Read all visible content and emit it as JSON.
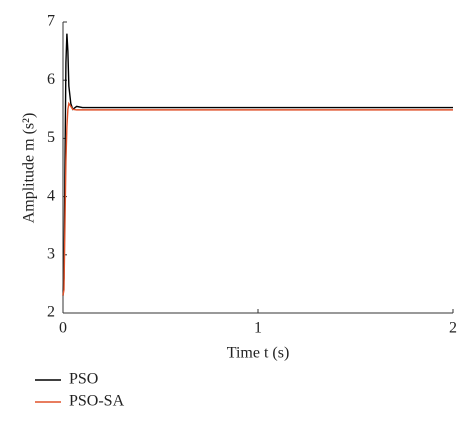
{
  "chart_data": {
    "type": "line",
    "x_label": "Time t (s)",
    "y_label": "Amplitude m (s²)",
    "x": [
      0,
      0.005,
      0.01,
      0.015,
      0.02,
      0.025,
      0.03,
      0.04,
      0.05,
      0.07,
      0.1,
      0.2,
      0.5,
      1,
      1.5,
      2
    ],
    "series": [
      {
        "name": "PSO",
        "color": "#000000",
        "values": [
          2.3,
          2.6,
          4.5,
          6.3,
          6.8,
          6.5,
          5.9,
          5.6,
          5.5,
          5.55,
          5.53,
          5.53,
          5.53,
          5.53,
          5.53,
          5.53
        ]
      },
      {
        "name": "PSO-SA",
        "color": "#e0522a",
        "values": [
          2.3,
          2.4,
          3.5,
          4.6,
          5.2,
          5.5,
          5.6,
          5.55,
          5.5,
          5.49,
          5.49,
          5.49,
          5.49,
          5.49,
          5.49,
          5.49
        ]
      }
    ],
    "xlim": [
      0,
      2
    ],
    "xticks": [
      0,
      1,
      2
    ],
    "ylim": [
      2,
      7
    ],
    "yticks": [
      2,
      3,
      4,
      5,
      6,
      7
    ],
    "grid": false,
    "legend": "below-left"
  }
}
